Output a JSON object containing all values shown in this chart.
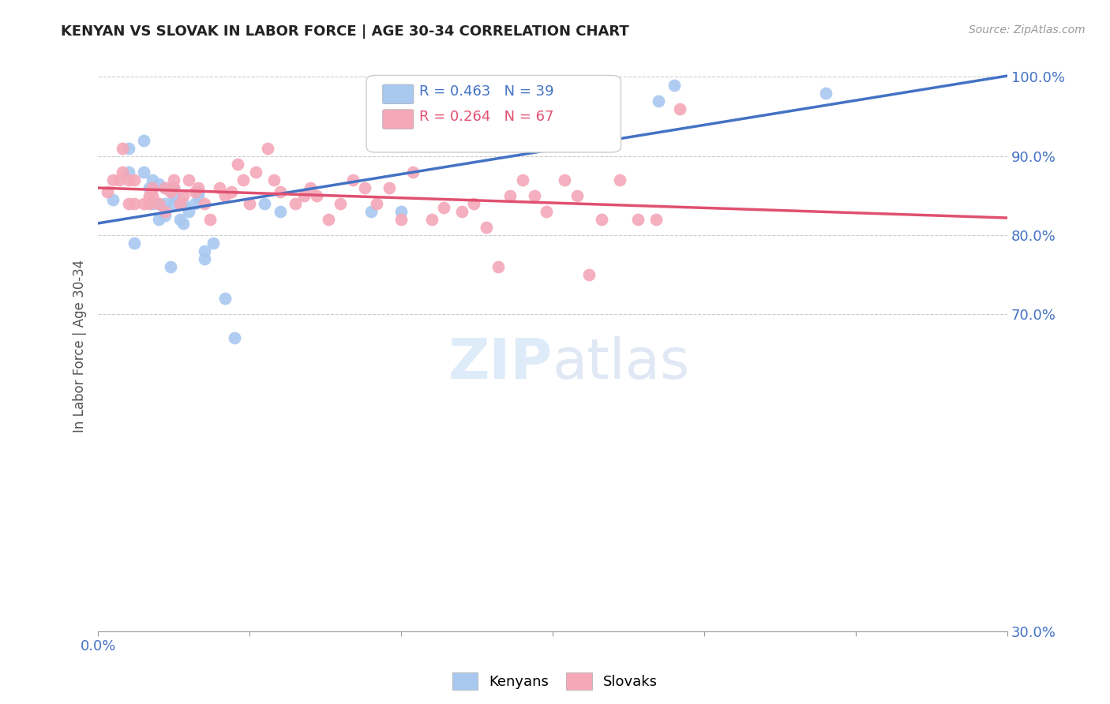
{
  "title": "KENYAN VS SLOVAK IN LABOR FORCE | AGE 30-34 CORRELATION CHART",
  "source": "Source: ZipAtlas.com",
  "ylabel": "In Labor Force | Age 30-34",
  "xlim": [
    0.0,
    0.3
  ],
  "ylim": [
    0.3,
    1.02
  ],
  "kenyan_color": "#a8c8f0",
  "slovak_color": "#f4a8b8",
  "kenyan_line_color": "#4472c4",
  "slovak_line_color": "#e05070",
  "kenyan_R": 0.463,
  "kenyan_N": 39,
  "slovak_R": 0.264,
  "slovak_N": 67,
  "grid_color": "#cccccc",
  "background_color": "#ffffff",
  "kenyan_x": [
    0.005,
    0.01,
    0.01,
    0.012,
    0.015,
    0.015,
    0.017,
    0.018,
    0.018,
    0.02,
    0.02,
    0.02,
    0.022,
    0.022,
    0.022,
    0.024,
    0.025,
    0.025,
    0.025,
    0.027,
    0.027,
    0.028,
    0.028,
    0.03,
    0.032,
    0.033,
    0.033,
    0.035,
    0.035,
    0.038,
    0.042,
    0.045,
    0.055,
    0.06,
    0.09,
    0.1,
    0.185,
    0.19,
    0.24
  ],
  "kenyan_y": [
    0.845,
    0.88,
    0.91,
    0.79,
    0.92,
    0.88,
    0.86,
    0.87,
    0.84,
    0.82,
    0.84,
    0.865,
    0.825,
    0.84,
    0.86,
    0.76,
    0.84,
    0.85,
    0.86,
    0.82,
    0.84,
    0.815,
    0.84,
    0.83,
    0.84,
    0.85,
    0.855,
    0.77,
    0.78,
    0.79,
    0.72,
    0.67,
    0.84,
    0.83,
    0.83,
    0.83,
    0.97,
    0.99,
    0.98
  ],
  "slovak_x": [
    0.003,
    0.005,
    0.007,
    0.008,
    0.008,
    0.01,
    0.01,
    0.012,
    0.012,
    0.015,
    0.017,
    0.017,
    0.018,
    0.018,
    0.02,
    0.022,
    0.022,
    0.024,
    0.025,
    0.025,
    0.027,
    0.028,
    0.03,
    0.032,
    0.033,
    0.035,
    0.037,
    0.04,
    0.042,
    0.044,
    0.046,
    0.048,
    0.05,
    0.052,
    0.056,
    0.058,
    0.06,
    0.065,
    0.068,
    0.07,
    0.072,
    0.076,
    0.08,
    0.084,
    0.088,
    0.092,
    0.096,
    0.1,
    0.104,
    0.11,
    0.114,
    0.12,
    0.124,
    0.128,
    0.132,
    0.136,
    0.14,
    0.144,
    0.148,
    0.154,
    0.158,
    0.162,
    0.166,
    0.172,
    0.178,
    0.184,
    0.192
  ],
  "slovak_y": [
    0.855,
    0.87,
    0.87,
    0.88,
    0.91,
    0.84,
    0.87,
    0.84,
    0.87,
    0.84,
    0.84,
    0.85,
    0.85,
    0.86,
    0.84,
    0.83,
    0.86,
    0.855,
    0.86,
    0.87,
    0.84,
    0.85,
    0.87,
    0.855,
    0.86,
    0.84,
    0.82,
    0.86,
    0.85,
    0.855,
    0.89,
    0.87,
    0.84,
    0.88,
    0.91,
    0.87,
    0.855,
    0.84,
    0.85,
    0.86,
    0.85,
    0.82,
    0.84,
    0.87,
    0.86,
    0.84,
    0.86,
    0.82,
    0.88,
    0.82,
    0.835,
    0.83,
    0.84,
    0.81,
    0.76,
    0.85,
    0.87,
    0.85,
    0.83,
    0.87,
    0.85,
    0.75,
    0.82,
    0.87,
    0.82,
    0.82,
    0.96
  ],
  "x_tick_left_label": "0.0%",
  "y_tick_labels": [
    "30.0%",
    "70.0%",
    "80.0%",
    "90.0%",
    "100.0%"
  ],
  "y_tick_values": [
    0.3,
    0.7,
    0.8,
    0.9,
    1.0
  ]
}
